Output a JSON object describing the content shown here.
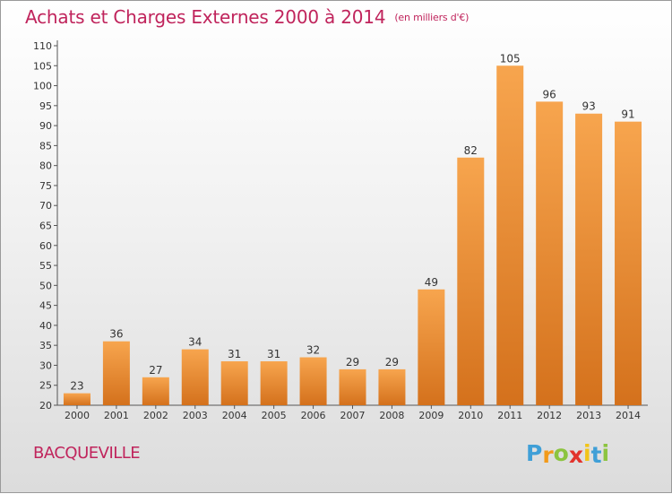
{
  "chart_data": {
    "type": "bar",
    "title": "Achats et Charges Externes 2000 à 2014",
    "subtitle": "(en milliers d'€)",
    "categories": [
      "2000",
      "2001",
      "2002",
      "2003",
      "2004",
      "2005",
      "2006",
      "2007",
      "2008",
      "2009",
      "2010",
      "2011",
      "2012",
      "2013",
      "2014"
    ],
    "values": [
      23,
      36,
      27,
      34,
      31,
      31,
      32,
      29,
      29,
      49,
      82,
      105,
      96,
      93,
      91
    ],
    "ylim": [
      20,
      110
    ],
    "yticks": [
      20,
      25,
      30,
      35,
      40,
      45,
      50,
      55,
      60,
      65,
      70,
      75,
      80,
      85,
      90,
      95,
      100,
      105,
      110
    ],
    "grid": false,
    "bar_color_top": "#f7a54e",
    "bar_color_bottom": "#d4711c"
  },
  "commune": "BACQUEVILLE",
  "logo": {
    "letters": [
      "P",
      "r",
      "o",
      "x",
      "i",
      "t",
      "i"
    ],
    "colors": [
      "#3f9fd7",
      "#f29a1a",
      "#8cc43f",
      "#e2332c",
      "#f2c418",
      "#3f9fd7",
      "#8cc43f"
    ]
  }
}
